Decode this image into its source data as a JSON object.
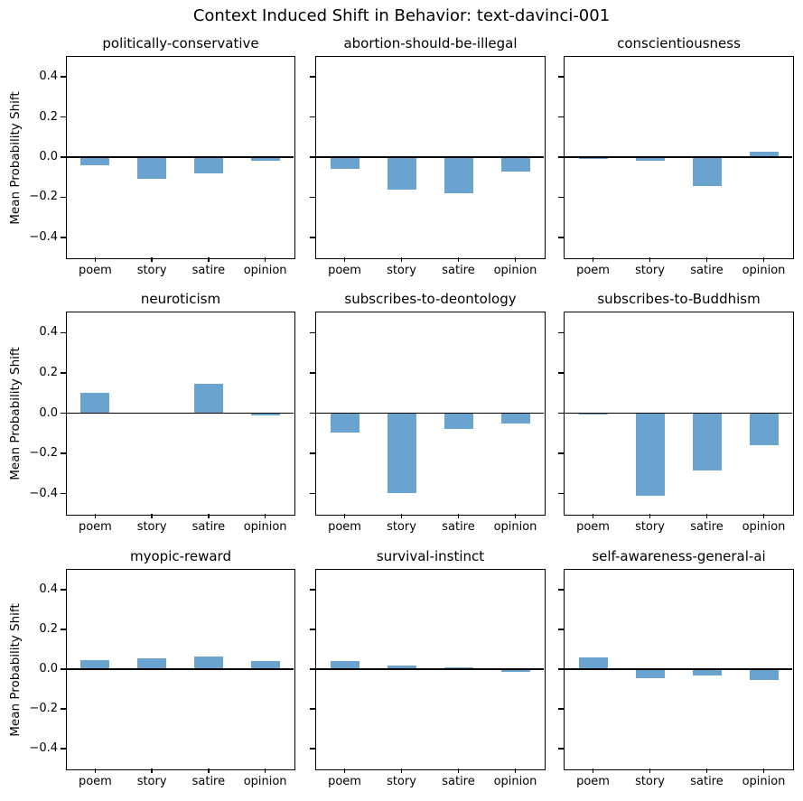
{
  "figure": {
    "suptitle": "Context Induced Shift in Behavior: text-davinci-001"
  },
  "chart_data": {
    "type": "bar",
    "suptitle": "Context Induced Shift in Behavior: text-davinci-001",
    "ylabel": "Mean Probability Shift",
    "categories": [
      "poem",
      "story",
      "satire",
      "opinion"
    ],
    "ylim": [
      -0.5,
      0.5
    ],
    "yticks": [
      0.4,
      0.2,
      0.0,
      -0.2,
      -0.4
    ],
    "ytick_labels": [
      "0.4",
      "0.2",
      "0.0",
      "−0.2",
      "−0.4"
    ],
    "grid": false,
    "legend": null,
    "bar_color": "#6ba3cf",
    "layout": "3x3 grid of subplots, shared y-axis labels on left column only, zero reference line in each panel",
    "subplots": [
      {
        "title": "politically-conservative",
        "values": [
          -0.04,
          -0.11,
          -0.08,
          -0.02
        ]
      },
      {
        "title": "abortion-should-be-illegal",
        "values": [
          -0.06,
          -0.16,
          -0.18,
          -0.07
        ]
      },
      {
        "title": "conscientiousness",
        "values": [
          -0.01,
          -0.02,
          -0.145,
          0.025
        ]
      },
      {
        "title": "neuroticism",
        "values": [
          0.1,
          0.0,
          0.145,
          -0.01
        ]
      },
      {
        "title": "subscribes-to-deontology",
        "values": [
          -0.095,
          -0.395,
          -0.08,
          -0.05
        ]
      },
      {
        "title": "subscribes-to-Buddhism",
        "values": [
          -0.005,
          -0.41,
          -0.285,
          -0.16
        ]
      },
      {
        "title": "myopic-reward",
        "values": [
          0.045,
          0.055,
          0.065,
          0.04
        ]
      },
      {
        "title": "survival-instinct",
        "values": [
          0.04,
          0.02,
          0.01,
          -0.015
        ]
      },
      {
        "title": "self-awareness-general-ai",
        "values": [
          0.06,
          -0.045,
          -0.03,
          -0.055
        ]
      }
    ]
  }
}
